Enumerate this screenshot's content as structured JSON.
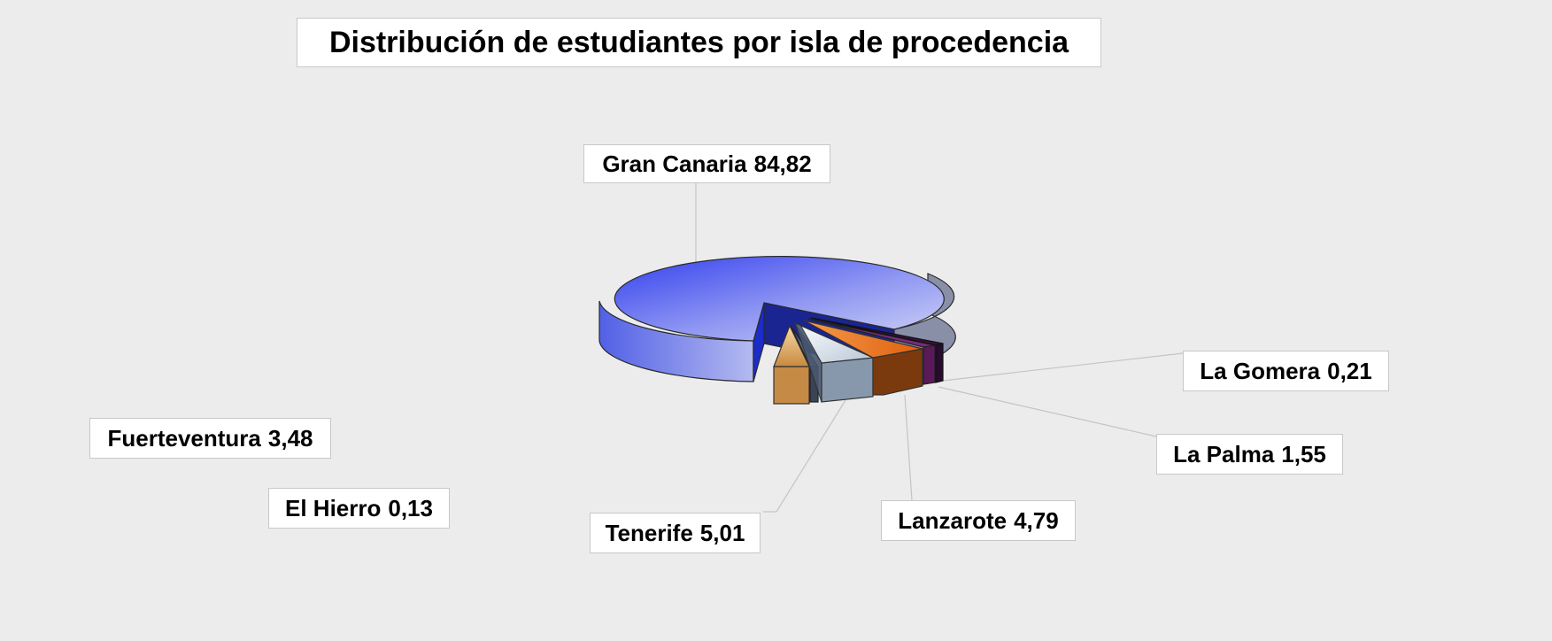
{
  "chart_data": {
    "type": "pie",
    "title": "Distribución de estudiantes por isla de procedencia",
    "slices": [
      {
        "name": "Gran Canaria",
        "value": 84.82,
        "value_label": "84,82",
        "color": "#4a57e8"
      },
      {
        "name": "Fuerteventura",
        "value": 3.48,
        "value_label": "3,48",
        "color": "#e0a860"
      },
      {
        "name": "El Hierro",
        "value": 0.13,
        "value_label": "0,13",
        "color": "#4a5870"
      },
      {
        "name": "Tenerife",
        "value": 5.01,
        "value_label": "5,01",
        "color": "#a8b8cc"
      },
      {
        "name": "Lanzarote",
        "value": 4.79,
        "value_label": "4,79",
        "color": "#e66a18"
      },
      {
        "name": "La Palma",
        "value": 1.55,
        "value_label": "1,55",
        "color": "#7a2a7a"
      },
      {
        "name": "La Gomera",
        "value": 0.21,
        "value_label": "0,21",
        "color": "#3a1040"
      }
    ],
    "style": "3d-exploded",
    "legend": "none",
    "data_labels": "name-and-value"
  }
}
